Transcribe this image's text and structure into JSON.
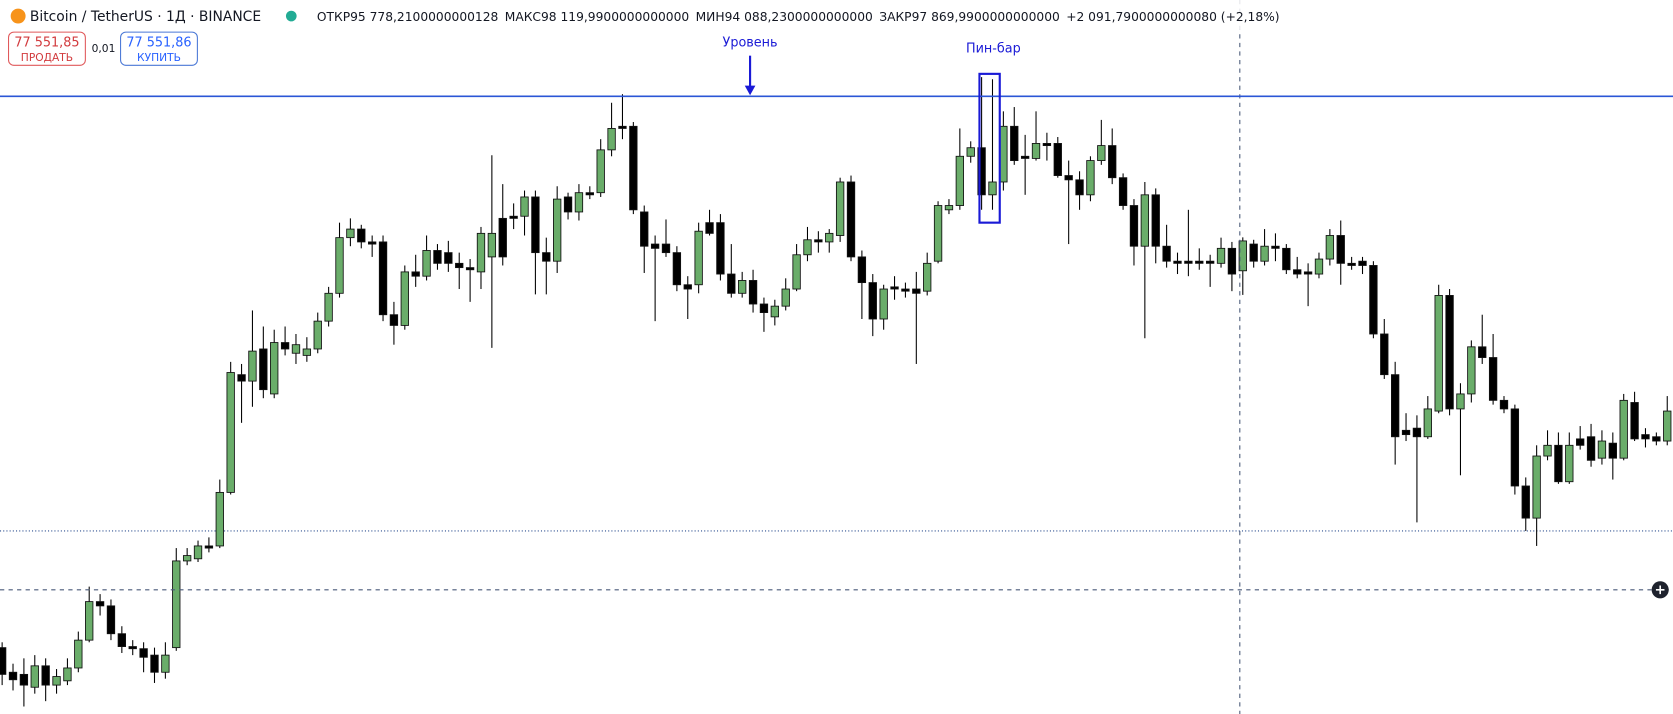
{
  "header": {
    "symbol": "Bitcoin / TetherUS · 1Д · BINANCE",
    "open_label": "ОТКР",
    "open": "95 778,2100000000128",
    "high_label": "МАКС",
    "high": "98 119,9900000000000",
    "low_label": "МИН",
    "low": "94 088,2300000000000",
    "close_label": "ЗАКР",
    "close": "97 869,9900000000000",
    "change": "+2 091,7900000000080 (+2,18%)",
    "sell": "ПРОДАТЬ",
    "spread": "0,01",
    "buy_price": "77 551,86",
    "buy": "КУПИТЬ"
  },
  "annotations": {
    "level": "Уровень",
    "pin_bar": "Пин-бар"
  },
  "chart_data": {
    "type": "candlestick",
    "up_color": "#6aad6a",
    "down_color": "#000000",
    "ylim": [
      64725,
      114750
    ],
    "last_price": {
      "value": 77551.85,
      "label": "77 551,85"
    },
    "open": [
      69375,
      67650,
      67500,
      66600,
      68100,
      66750,
      67050,
      67950,
      69900,
      72600,
      72300,
      70350,
      69450,
      69300,
      68850,
      67650,
      69375,
      75450,
      75600,
      76500,
      76500,
      80250,
      88500,
      88050,
      90300,
      87150,
      90750,
      90000,
      89850,
      90300,
      92250,
      94200,
      98100,
      98700,
      97800,
      97800,
      92700,
      91950,
      95700,
      95400,
      97200,
      97050,
      96300,
      96000,
      95700,
      96750,
      99450,
      99600,
      99600,
      100950,
      97050,
      96450,
      100950,
      99900,
      101250,
      101250,
      104250,
      105900,
      105900,
      99900,
      97650,
      97650,
      97050,
      94800,
      94800,
      99150,
      99150,
      95550,
      94200,
      95100,
      93450,
      92550,
      93300,
      94500,
      96900,
      97950,
      97800,
      98250,
      102000,
      96750,
      94950,
      92400,
      94650,
      94500,
      94500,
      94350,
      96450,
      100050,
      100350,
      103800,
      104400,
      101100,
      102000,
      105900,
      103800,
      103650,
      104700,
      104700,
      102450,
      102150,
      101100,
      103500,
      104550,
      102300,
      100350,
      97500,
      101100,
      97500,
      96450,
      96450,
      96450,
      96450,
      96300,
      97350,
      95778.21,
      97650,
      96450,
      97500,
      97350,
      95850,
      95700,
      95550,
      96600,
      98250,
      96300,
      96450,
      96150,
      91350,
      88500,
      84600,
      84750,
      84150,
      85950,
      94050,
      86100,
      87150,
      90450,
      89700,
      86700,
      86100,
      80700,
      78450,
      82800,
      83550,
      81000,
      84000,
      84150,
      82650,
      83700,
      82650,
      86550,
      84300,
      84150,
      83850
    ],
    "high": [
      69750,
      68250,
      68625,
      68850,
      68625,
      67875,
      68625,
      70500,
      73650,
      73125,
      72750,
      70875,
      69900,
      69750,
      69375,
      69750,
      76350,
      76350,
      76875,
      77100,
      81150,
      89400,
      89250,
      93000,
      91875,
      91650,
      91875,
      91350,
      91125,
      92850,
      94650,
      99150,
      99450,
      99000,
      98250,
      98250,
      93600,
      96150,
      96900,
      98250,
      97650,
      97875,
      97050,
      96600,
      98850,
      103875,
      101850,
      100500,
      101400,
      101400,
      98100,
      101700,
      101250,
      101850,
      101700,
      105000,
      107550,
      108150,
      106200,
      100350,
      98250,
      99375,
      97500,
      95400,
      99150,
      100050,
      99750,
      97650,
      95700,
      95850,
      93900,
      93750,
      95250,
      97650,
      98850,
      98550,
      98700,
      102300,
      102450,
      97200,
      95550,
      94800,
      95400,
      94950,
      95700,
      97050,
      100650,
      100800,
      105750,
      104850,
      109350,
      109200,
      106950,
      107250,
      105300,
      106950,
      105450,
      105150,
      103500,
      102750,
      103800,
      106350,
      105750,
      102600,
      100800,
      102000,
      101550,
      99000,
      97050,
      100050,
      97350,
      96900,
      98100,
      97800,
      98119.99,
      97950,
      98700,
      98400,
      97650,
      96750,
      96300,
      97050,
      98700,
      99300,
      96750,
      96750,
      96450,
      92400,
      89400,
      85800,
      85650,
      87000,
      94800,
      94500,
      87900,
      90900,
      92700,
      91350,
      87000,
      86400,
      81300,
      83550,
      84600,
      84450,
      84450,
      84900,
      85050,
      84600,
      84450,
      87150,
      87300,
      84750,
      84450,
      87000
    ],
    "low": [
      66750,
      66375,
      65250,
      66150,
      65625,
      66150,
      66750,
      67650,
      69750,
      71625,
      69900,
      69000,
      68850,
      67650,
      66900,
      67200,
      69150,
      75150,
      75375,
      76050,
      76350,
      80100,
      85125,
      86250,
      86850,
      86850,
      89850,
      89250,
      89400,
      90000,
      91875,
      93900,
      97500,
      97350,
      96750,
      92250,
      90600,
      91650,
      94650,
      95100,
      95850,
      95700,
      94500,
      93600,
      94500,
      90375,
      96150,
      98700,
      98250,
      94125,
      94125,
      95625,
      99375,
      99300,
      100800,
      100950,
      103800,
      105000,
      99750,
      95625,
      92250,
      96750,
      94350,
      92400,
      94200,
      98250,
      95100,
      93900,
      93900,
      92850,
      91500,
      91950,
      93000,
      94350,
      96450,
      97050,
      97050,
      97800,
      96450,
      92400,
      91200,
      91650,
      93750,
      93900,
      89250,
      94050,
      96300,
      99750,
      100050,
      103350,
      100050,
      100050,
      101400,
      103200,
      101100,
      103500,
      103500,
      102300,
      97650,
      100050,
      100650,
      103200,
      101850,
      100050,
      96150,
      91050,
      96300,
      96000,
      95550,
      95400,
      95850,
      94650,
      96000,
      94350,
      94088.23,
      96000,
      96150,
      96450,
      95550,
      95250,
      93300,
      95250,
      96150,
      94800,
      95850,
      95550,
      91050,
      88200,
      82200,
      83850,
      78150,
      84000,
      85800,
      85650,
      81450,
      86550,
      89250,
      86400,
      85800,
      80100,
      77550,
      76500,
      82500,
      80850,
      80850,
      83250,
      82050,
      82200,
      81150,
      82500,
      83850,
      83400,
      83550,
      83550
    ],
    "close": [
      67500,
      67125,
      66750,
      68100,
      66750,
      67350,
      67950,
      69900,
      72600,
      72300,
      70350,
      69450,
      69300,
      68700,
      67650,
      68850,
      75450,
      75825,
      76500,
      76350,
      80250,
      88650,
      88050,
      90150,
      87450,
      90750,
      90300,
      90600,
      90300,
      92250,
      94200,
      98100,
      98700,
      97800,
      97650,
      92700,
      91950,
      95700,
      95400,
      97200,
      96300,
      96300,
      96000,
      95850,
      98400,
      98400,
      96750,
      99450,
      100950,
      97050,
      96450,
      100800,
      99900,
      101250,
      101100,
      104250,
      105750,
      105750,
      100050,
      97500,
      97350,
      97050,
      94800,
      94500,
      98550,
      98400,
      95550,
      94200,
      95100,
      93450,
      92850,
      93300,
      94500,
      96900,
      97950,
      97800,
      98400,
      102000,
      96750,
      94950,
      92400,
      94500,
      94500,
      94350,
      94200,
      96300,
      100350,
      100350,
      103800,
      104400,
      101100,
      102000,
      105900,
      103500,
      103650,
      104700,
      104550,
      102450,
      102150,
      101100,
      103500,
      104550,
      102300,
      100350,
      97500,
      101100,
      97500,
      96450,
      96300,
      96300,
      96300,
      96300,
      97350,
      95550,
      97869.99,
      96450,
      97500,
      97350,
      95850,
      95550,
      95550,
      96600,
      98250,
      96300,
      96150,
      96150,
      91350,
      88500,
      84150,
      84300,
      84150,
      86100,
      94050,
      86100,
      87150,
      90450,
      89700,
      86700,
      86100,
      80700,
      78450,
      82800,
      83550,
      81000,
      83550,
      83550,
      82500,
      83850,
      82650,
      86700,
      84000,
      84000,
      83850,
      85950
    ]
  }
}
